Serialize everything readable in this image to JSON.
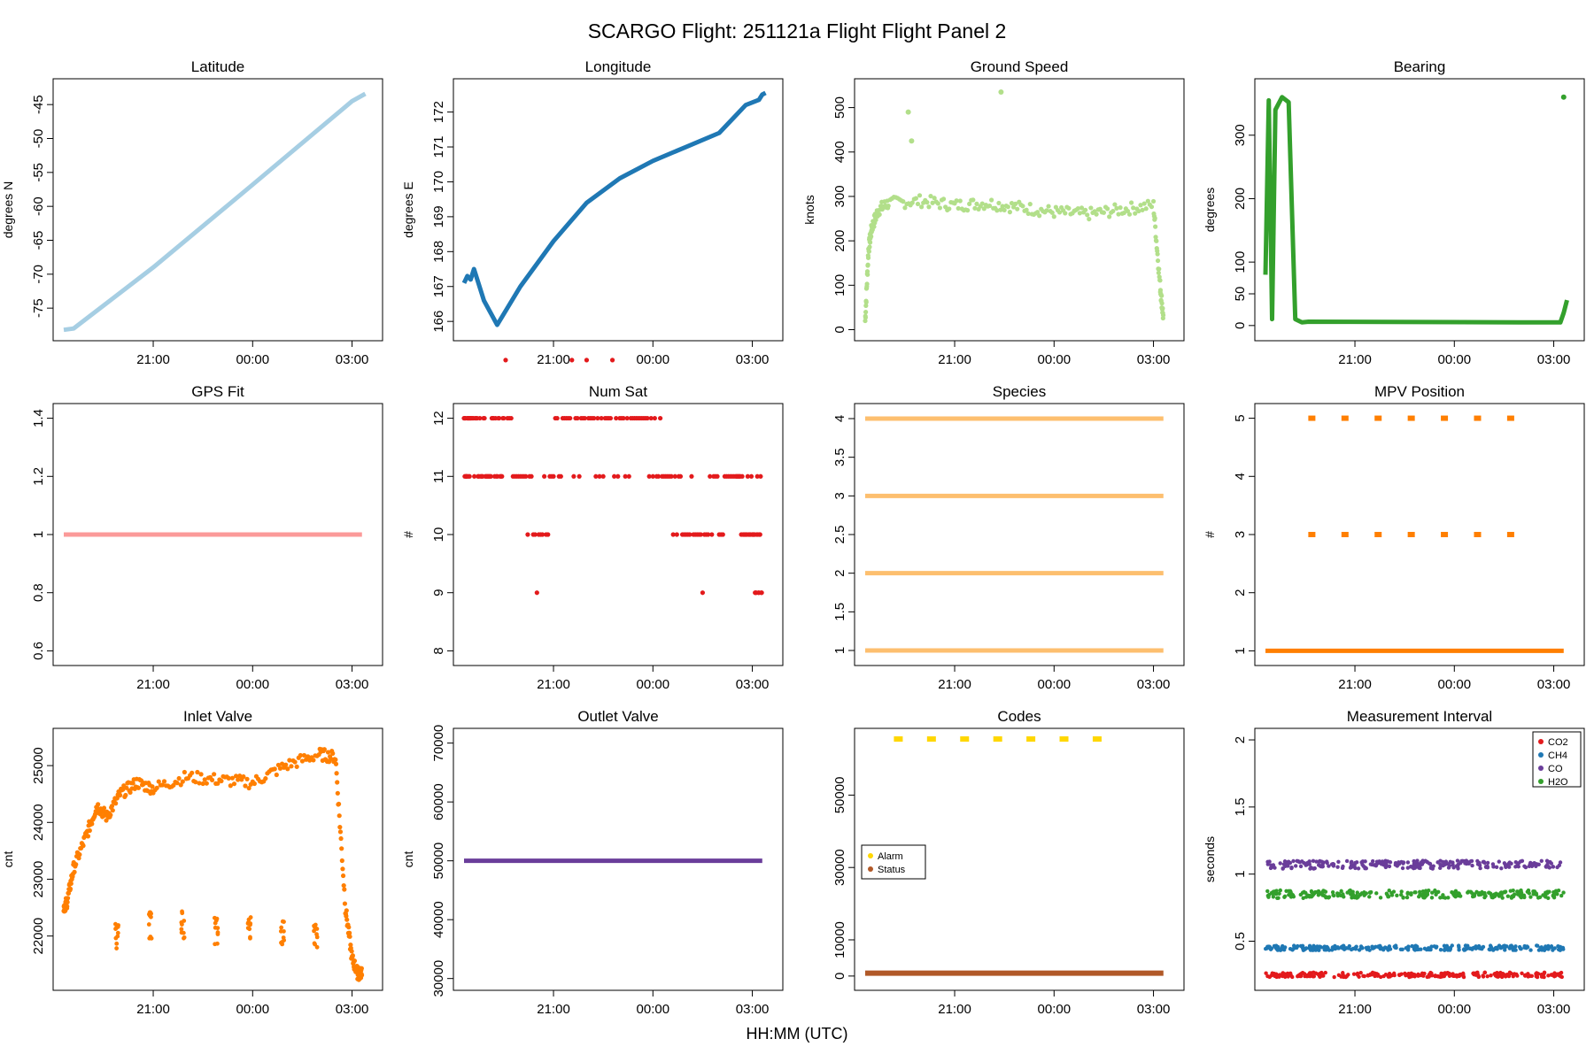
{
  "title": "SCARGO Flight: 251121a  Flight Flight  Panel 2",
  "xlabel": "HH:MM (UTC)",
  "x_tick_labels": [
    "21:00",
    "00:00",
    "03:00"
  ],
  "chart_data": [
    {
      "type": "line",
      "title": "Latitude",
      "ylabel": "degrees N",
      "x_range_hours": [
        18.3,
        27.6
      ],
      "ylim": [
        -78.5,
        -42.5
      ],
      "y_ticks": [
        -75,
        -70,
        -65,
        -60,
        -55,
        -50,
        -45
      ],
      "series": [
        {
          "color": "#a6cee3",
          "x": [
            18.3,
            18.6,
            19.0,
            21.0,
            24.0,
            27.0,
            27.4
          ],
          "y": [
            -78.2,
            -78.0,
            -76.5,
            -69.0,
            -56.8,
            -44.5,
            -43.4
          ]
        }
      ]
    },
    {
      "type": "line",
      "title": "Longitude",
      "ylabel": "degrees E",
      "x_range_hours": [
        18.3,
        27.6
      ],
      "ylim": [
        165.7,
        172.7
      ],
      "y_ticks": [
        166,
        167,
        168,
        169,
        170,
        171,
        172
      ],
      "series": [
        {
          "color": "#1f78b4",
          "x": [
            18.3,
            18.4,
            18.5,
            18.6,
            18.9,
            19.3,
            20.0,
            21.0,
            22.0,
            23.0,
            24.0,
            25.0,
            26.0,
            26.4,
            26.8,
            27.2,
            27.3,
            27.4
          ],
          "y": [
            167.1,
            167.3,
            167.2,
            167.5,
            166.6,
            165.9,
            167.0,
            168.3,
            169.4,
            170.1,
            170.6,
            171.0,
            171.4,
            171.8,
            172.2,
            172.35,
            172.5,
            172.55
          ]
        }
      ]
    },
    {
      "type": "scatter",
      "title": "Ground Speed",
      "ylabel": "knots",
      "x_range_hours": [
        18.3,
        27.6
      ],
      "ylim": [
        -5,
        545
      ],
      "y_ticks": [
        0,
        100,
        200,
        300,
        400,
        500
      ],
      "series": [
        {
          "color": "#b2df8a",
          "x": [
            18.3,
            18.4,
            18.5,
            18.7,
            19.0,
            20.0,
            21.0,
            22.0,
            23.0,
            24.0,
            25.0,
            26.0,
            27.0,
            27.2,
            27.3
          ],
          "y": [
            20,
            180,
            230,
            270,
            285,
            290,
            280,
            285,
            275,
            265,
            260,
            270,
            280,
            100,
            25
          ]
        }
      ],
      "outliers": {
        "x": [
          19.6,
          19.7,
          22.4
        ],
        "y": [
          490,
          425,
          535
        ]
      }
    },
    {
      "type": "line",
      "title": "Bearing",
      "ylabel": "degrees",
      "x_range_hours": [
        18.3,
        27.6
      ],
      "ylim": [
        -10,
        375
      ],
      "y_ticks": [
        0,
        50,
        100,
        200,
        300
      ],
      "series": [
        {
          "color": "#33a02c",
          "x": [
            18.3,
            18.4,
            18.5,
            18.6,
            18.8,
            19.0,
            19.2,
            19.4,
            19.6,
            26.0,
            27.2,
            27.3,
            27.4
          ],
          "y": [
            80,
            355,
            10,
            340,
            360,
            352,
            10,
            5,
            6,
            5,
            5,
            20,
            40
          ]
        }
      ],
      "outliers": {
        "x": [
          27.3
        ],
        "y": [
          360
        ]
      }
    },
    {
      "type": "line",
      "title": "GPS Fit",
      "ylabel": "",
      "x_range_hours": [
        18.3,
        27.6
      ],
      "ylim": [
        0.58,
        1.42
      ],
      "y_ticks": [
        0.6,
        0.8,
        1.0,
        1.2,
        1.4
      ],
      "series": [
        {
          "color": "#fb9a99",
          "x": [
            18.3,
            27.3
          ],
          "y": [
            1.0,
            1.0
          ]
        }
      ]
    },
    {
      "type": "scatter",
      "title": "Num Sat",
      "ylabel": "#",
      "x_range_hours": [
        18.3,
        27.6
      ],
      "ylim": [
        7.9,
        12.1
      ],
      "y_ticks": [
        8,
        9,
        10,
        11,
        12
      ],
      "series": [
        {
          "color": "#e31a1c",
          "x": [
            18.3,
            18.5,
            19.0,
            19.5,
            20.5,
            21.5,
            22.5,
            23.5,
            24.5,
            25.5,
            26.5,
            27.0,
            27.3
          ],
          "y": [
            11,
            12,
            11,
            12,
            10,
            12,
            12,
            12,
            11,
            10,
            11,
            10,
            10
          ]
        }
      ]
    },
    {
      "type": "scatter",
      "title": "Species",
      "ylabel": "",
      "x_range_hours": [
        18.3,
        27.6
      ],
      "ylim": [
        0.92,
        4.08
      ],
      "y_ticks": [
        1.0,
        1.5,
        2.0,
        2.5,
        3.0,
        3.5,
        4.0
      ],
      "series": [
        {
          "color": "#fdbf6f",
          "levels": [
            1,
            2,
            3,
            4
          ]
        }
      ]
    },
    {
      "type": "scatter",
      "title": "MPV Position",
      "ylabel": "#",
      "x_range_hours": [
        18.3,
        27.6
      ],
      "ylim": [
        0.9,
        5.1
      ],
      "y_ticks": [
        1,
        2,
        3,
        4,
        5
      ],
      "series": [
        {
          "color": "#ff7f00",
          "baseline": 1,
          "x": [
            19.7,
            20.7,
            21.7,
            22.7,
            23.7,
            24.7,
            25.7
          ],
          "y_high": 5,
          "y_mid": 3
        }
      ]
    },
    {
      "type": "scatter",
      "title": "Inlet Valve",
      "ylabel": "cnt",
      "x_range_hours": [
        18.3,
        27.6
      ],
      "ylim": [
        21200,
        25500
      ],
      "y_ticks": [
        22000,
        23000,
        24000,
        25000
      ],
      "series": [
        {
          "color": "#ff7f00",
          "x": [
            18.3,
            18.4,
            18.6,
            19.0,
            19.3,
            19.6,
            20.0,
            20.5,
            21.0,
            22.0,
            23.0,
            24.0,
            25.0,
            26.0,
            26.5,
            26.8,
            27.0,
            27.2,
            27.3
          ],
          "y": [
            22500,
            22600,
            23200,
            23800,
            24300,
            24100,
            24500,
            24700,
            24600,
            24800,
            24750,
            24700,
            25000,
            25200,
            25150,
            22500,
            21600,
            21300,
            21400
          ]
        }
      ],
      "low_clusters": {
        "x": [
          19.9,
          20.9,
          21.9,
          22.9,
          23.9,
          24.9,
          25.9
        ],
        "y": [
          22000,
          22200,
          22200,
          22100,
          22100,
          22100,
          22000
        ]
      }
    },
    {
      "type": "line",
      "title": "Outlet Valve",
      "ylabel": "cnt",
      "x_range_hours": [
        18.3,
        27.6
      ],
      "ylim": [
        29500,
        71000
      ],
      "y_ticks": [
        30000,
        40000,
        50000,
        60000,
        70000
      ],
      "series": [
        {
          "color": "#6a3d9a",
          "x": [
            18.3,
            27.3
          ],
          "y": [
            50000,
            50000
          ]
        }
      ]
    },
    {
      "type": "scatter",
      "title": "Codes",
      "ylabel": "",
      "x_range_hours": [
        18.3,
        27.6
      ],
      "ylim": [
        -1500,
        66000
      ],
      "y_ticks": [
        0,
        10000,
        30000,
        50000
      ],
      "series": [
        {
          "name": "Alarm",
          "color": "#ffd700",
          "x": [
            19.3,
            20.3,
            21.3,
            22.3,
            23.3,
            24.3,
            25.3
          ],
          "y": 65500
        },
        {
          "name": "Status",
          "color": "#b15928",
          "x": [
            18.3,
            27.3
          ],
          "y": 800
        }
      ]
    },
    {
      "type": "scatter",
      "title": "Measurement Interval",
      "ylabel": "seconds",
      "x_range_hours": [
        18.3,
        27.6
      ],
      "ylim": [
        0.2,
        2.02
      ],
      "y_ticks": [
        0.5,
        1.0,
        1.5,
        2.0
      ],
      "series": [
        {
          "name": "CO2",
          "color": "#e31a1c",
          "y": 0.25
        },
        {
          "name": "CH4",
          "color": "#1f78b4",
          "y": 0.45
        },
        {
          "name": "CO",
          "color": "#6a3d9a",
          "y": 1.07
        },
        {
          "name": "H2O",
          "color": "#33a02c",
          "y": 0.85
        }
      ]
    }
  ]
}
